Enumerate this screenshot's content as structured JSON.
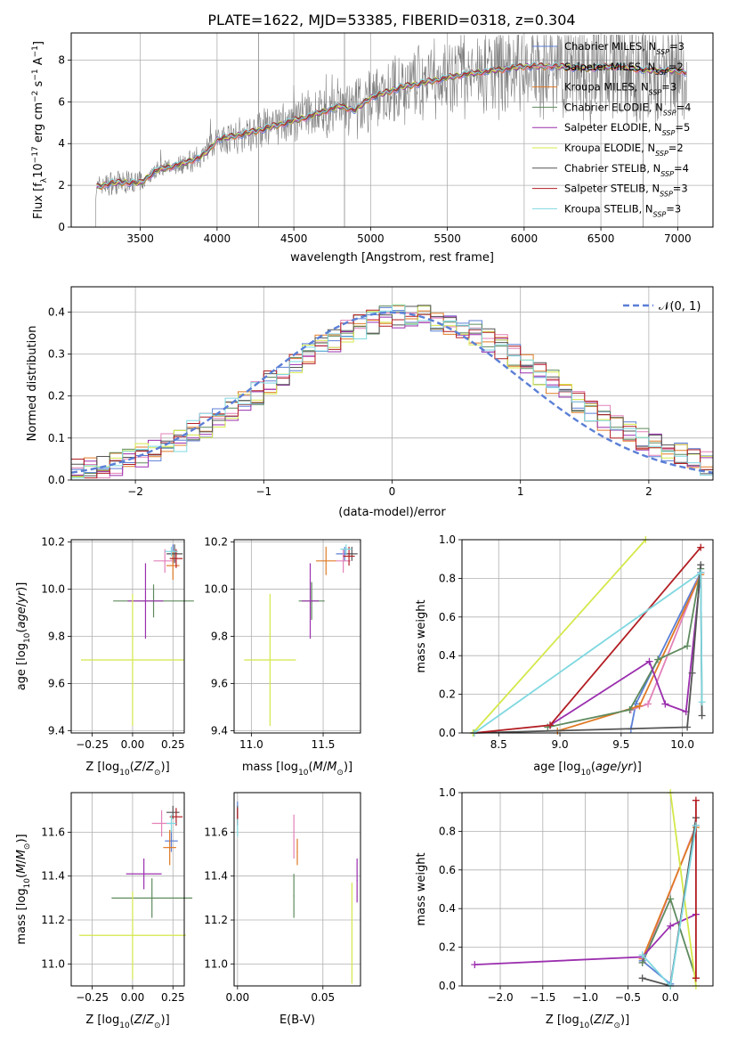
{
  "figure_title": "PLATE=1622, MJD=53385, FIBERID=0318, z=0.304",
  "legend_models": [
    {
      "label": "Chabrier MILES, N",
      "sub": "SSP",
      "tail": "=3",
      "color": "#5b7fd6"
    },
    {
      "label": "Salpeter MILES, N",
      "sub": "SSP",
      "tail": "=2",
      "color": "#e281b8"
    },
    {
      "label": "Kroupa MILES, N",
      "sub": "SSP",
      "tail": "=3",
      "color": "#e07b26"
    },
    {
      "label": "Chabrier ELODIE, N",
      "sub": "SSP",
      "tail": "=4",
      "color": "#5e8a5e"
    },
    {
      "label": "Salpeter ELODIE, N",
      "sub": "SSP",
      "tail": "=5",
      "color": "#9b2fae"
    },
    {
      "label": "Kroupa ELODIE, N",
      "sub": "SSP",
      "tail": "=2",
      "color": "#d4e84a"
    },
    {
      "label": "Chabrier STELIB, N",
      "sub": "SSP",
      "tail": "=4",
      "color": "#555555"
    },
    {
      "label": "Salpeter STELIB, N",
      "sub": "SSP",
      "tail": "=3",
      "color": "#b21e23"
    },
    {
      "label": "Kroupa STELIB, N",
      "sub": "SSP",
      "tail": "=3",
      "color": "#7fd8e0"
    }
  ],
  "chart_data": [
    {
      "type": "line",
      "id": "spectrum",
      "xlabel": "wavelength [Angstrom, rest frame]",
      "ylabel": "Flux [f",
      "ylabel_parts": [
        "Flux [f",
        "λ",
        "10",
        "−17",
        " erg cm",
        "−2",
        " s",
        "−1",
        " A",
        "−1",
        "]"
      ],
      "xlim": [
        3050,
        7230
      ],
      "ylim": [
        0,
        9.3
      ],
      "xticks": [
        3500,
        4000,
        4500,
        5000,
        5500,
        6000,
        6500,
        7000
      ],
      "yticks": [
        0,
        2,
        4,
        6,
        8
      ],
      "continuum": [
        [
          3210,
          1.9
        ],
        [
          3300,
          2.1
        ],
        [
          3400,
          2.15
        ],
        [
          3500,
          2.1
        ],
        [
          3600,
          2.7
        ],
        [
          3700,
          2.9
        ],
        [
          3800,
          3.1
        ],
        [
          3900,
          3.4
        ],
        [
          3950,
          3.7
        ],
        [
          4000,
          4.2
        ],
        [
          4200,
          4.5
        ],
        [
          4400,
          4.9
        ],
        [
          4600,
          5.3
        ],
        [
          4800,
          5.8
        ],
        [
          4900,
          5.6
        ],
        [
          5000,
          6.2
        ],
        [
          5200,
          6.7
        ],
        [
          5400,
          7.0
        ],
        [
          5600,
          7.3
        ],
        [
          5800,
          7.5
        ],
        [
          6000,
          7.7
        ],
        [
          6200,
          7.7
        ],
        [
          6400,
          7.6
        ],
        [
          6600,
          7.7
        ],
        [
          6800,
          7.5
        ],
        [
          7000,
          7.5
        ],
        [
          7060,
          7.4
        ]
      ]
    },
    {
      "type": "area",
      "id": "residual-histograms",
      "xlabel": "(data-model)/error",
      "ylabel": "Normed distribution",
      "xlim": [
        -2.5,
        2.5
      ],
      "ylim": [
        0,
        0.46
      ],
      "xticks": [
        -2,
        -1,
        0,
        1,
        2
      ],
      "yticks": [
        0.0,
        0.1,
        0.2,
        0.3,
        0.4
      ],
      "bin_width": 0.1,
      "reference": {
        "label": "𝒩(0, 1)",
        "mean": 0,
        "sigma": 1,
        "color": "#5b7fd6"
      }
    },
    {
      "type": "scatter",
      "id": "age-vs-metallicity",
      "xlabel": "Z [log10(Z/Z⊙)]",
      "ylabel": "age [log10(age/yr)]",
      "xlim": [
        -0.38,
        0.32
      ],
      "ylim": [
        9.39,
        10.21
      ],
      "xticks": [
        -0.25,
        0.0,
        0.25
      ],
      "yticks": [
        9.4,
        9.6,
        9.8,
        10.0,
        10.2
      ],
      "points": [
        {
          "model": 0,
          "x": 0.25,
          "y": 10.15,
          "xerr": 0.03,
          "yerr": 0.04
        },
        {
          "model": 1,
          "x": 0.2,
          "y": 10.12,
          "xerr": 0.07,
          "yerr": 0.05
        },
        {
          "model": 2,
          "x": 0.25,
          "y": 10.1,
          "xerr": 0.04,
          "yerr": 0.06
        },
        {
          "model": 3,
          "x": 0.13,
          "y": 9.95,
          "xerr": 0.25,
          "yerr": 0.07
        },
        {
          "model": 4,
          "x": 0.08,
          "y": 9.95,
          "xerr": 0.11,
          "yerr": 0.16
        },
        {
          "model": 5,
          "x": 0.0,
          "y": 9.7,
          "xerr": 0.32,
          "yerr": 0.28
        },
        {
          "model": 6,
          "x": 0.26,
          "y": 10.15,
          "xerr": 0.05,
          "yerr": 0.04
        },
        {
          "model": 7,
          "x": 0.27,
          "y": 10.13,
          "xerr": 0.04,
          "yerr": 0.04
        },
        {
          "model": 8,
          "x": 0.24,
          "y": 10.16,
          "xerr": 0.04,
          "yerr": 0.02
        }
      ]
    },
    {
      "type": "scatter",
      "id": "age-vs-mass",
      "xlabel": "mass [log10(M/M⊙)]",
      "ylabel": "",
      "xlim": [
        10.88,
        11.76
      ],
      "ylim": [
        9.39,
        10.21
      ],
      "xticks": [
        11.0,
        11.5
      ],
      "yticks": [
        9.4,
        9.6,
        9.8,
        10.0,
        10.2
      ],
      "points": [
        {
          "model": 0,
          "x": 11.65,
          "y": 10.15,
          "xerr": 0.06,
          "yerr": 0.03
        },
        {
          "model": 1,
          "x": 11.64,
          "y": 10.12,
          "xerr": 0.05,
          "yerr": 0.05
        },
        {
          "model": 2,
          "x": 11.52,
          "y": 10.12,
          "xerr": 0.07,
          "yerr": 0.06
        },
        {
          "model": 3,
          "x": 11.42,
          "y": 9.95,
          "xerr": 0.09,
          "yerr": 0.08
        },
        {
          "model": 4,
          "x": 11.41,
          "y": 9.95,
          "xerr": 0.06,
          "yerr": 0.16
        },
        {
          "model": 5,
          "x": 11.13,
          "y": 9.7,
          "xerr": 0.18,
          "yerr": 0.28
        },
        {
          "model": 6,
          "x": 11.7,
          "y": 10.15,
          "xerr": 0.04,
          "yerr": 0.03
        },
        {
          "model": 7,
          "x": 11.68,
          "y": 10.14,
          "xerr": 0.04,
          "yerr": 0.04
        },
        {
          "model": 8,
          "x": 11.66,
          "y": 10.17,
          "xerr": 0.04,
          "yerr": 0.02
        }
      ]
    },
    {
      "type": "line",
      "id": "mass-weight-vs-age",
      "xlabel": "age [log10(age/yr)]",
      "ylabel": "mass weight",
      "xlim": [
        8.2,
        10.25
      ],
      "ylim": [
        0,
        1.0
      ],
      "xticks": [
        8.5,
        9.0,
        9.5,
        10.0
      ],
      "yticks": [
        0.0,
        0.2,
        0.4,
        0.6,
        0.8,
        1.0
      ],
      "series": [
        {
          "model": 0,
          "x": [
            9.58,
            9.62,
            10.15
          ],
          "y": [
            0.02,
            0.15,
            0.83
          ]
        },
        {
          "model": 1,
          "x": [
            9.58,
            9.72,
            10.15
          ],
          "y": [
            0.12,
            0.15,
            0.83
          ]
        },
        {
          "model": 2,
          "x": [
            8.98,
            9.65,
            10.15
          ],
          "y": [
            0.01,
            0.14,
            0.82
          ]
        },
        {
          "model": 3,
          "x": [
            8.9,
            9.57,
            9.8,
            10.04,
            10.15
          ],
          "y": [
            0.03,
            0.12,
            0.38,
            0.45,
            0.85
          ]
        },
        {
          "model": 4,
          "x": [
            8.92,
            9.73,
            9.86,
            10.03,
            10.15
          ],
          "y": [
            0.04,
            0.37,
            0.15,
            0.11,
            0.83
          ]
        },
        {
          "model": 5,
          "x": [
            8.29,
            9.7
          ],
          "y": [
            0.0,
            1.0
          ]
        },
        {
          "model": 6,
          "x": [
            8.3,
            10.04,
            10.08,
            10.15,
            10.16
          ],
          "y": [
            0.0,
            0.03,
            0.31,
            0.87,
            0.09
          ]
        },
        {
          "model": 7,
          "x": [
            8.3,
            8.92,
            10.15
          ],
          "y": [
            0.0,
            0.04,
            0.96
          ]
        },
        {
          "model": 8,
          "x": [
            8.3,
            10.15,
            10.16
          ],
          "y": [
            0.0,
            0.83,
            0.16
          ]
        }
      ]
    },
    {
      "type": "scatter",
      "id": "mass-vs-metallicity",
      "xlabel": "Z [log10(Z/Z⊙)]",
      "ylabel": "mass [log10(M/M⊙)]",
      "xlim": [
        -0.38,
        0.32
      ],
      "ylim": [
        10.9,
        11.78
      ],
      "xticks": [
        -0.25,
        0.0,
        0.25
      ],
      "yticks": [
        11.0,
        11.2,
        11.4,
        11.6
      ],
      "points": [
        {
          "model": 0,
          "x": 0.24,
          "y": 11.56,
          "xerr": 0.04,
          "yerr": 0.05
        },
        {
          "model": 1,
          "x": 0.18,
          "y": 11.64,
          "xerr": 0.06,
          "yerr": 0.06
        },
        {
          "model": 2,
          "x": 0.23,
          "y": 11.53,
          "xerr": 0.04,
          "yerr": 0.08
        },
        {
          "model": 3,
          "x": 0.12,
          "y": 11.3,
          "xerr": 0.25,
          "yerr": 0.09
        },
        {
          "model": 4,
          "x": 0.07,
          "y": 11.41,
          "xerr": 0.11,
          "yerr": 0.07
        },
        {
          "model": 5,
          "x": 0.0,
          "y": 11.13,
          "xerr": 0.33,
          "yerr": 0.2
        },
        {
          "model": 6,
          "x": 0.25,
          "y": 11.69,
          "xerr": 0.04,
          "yerr": 0.03
        },
        {
          "model": 7,
          "x": 0.27,
          "y": 11.67,
          "xerr": 0.04,
          "yerr": 0.04
        },
        {
          "model": 8,
          "x": 0.24,
          "y": 11.64,
          "xerr": 0.03,
          "yerr": 0.04
        }
      ]
    },
    {
      "type": "scatter",
      "id": "mass-vs-extinction",
      "xlabel": "E(B-V)",
      "ylabel": "",
      "xlim": [
        -0.002,
        0.072
      ],
      "ylim": [
        10.9,
        11.78
      ],
      "xticks": [
        0.0,
        0.05
      ],
      "yticks": [
        11.0,
        11.2,
        11.4,
        11.6
      ],
      "points": [
        {
          "model": 0,
          "x": 0.0,
          "y": 11.7,
          "xerr": 0.0003,
          "yerr": 0.04
        },
        {
          "model": 1,
          "x": 0.033,
          "y": 11.58,
          "xerr": 0.0003,
          "yerr": 0.1
        },
        {
          "model": 2,
          "x": 0.035,
          "y": 11.51,
          "xerr": 0.0003,
          "yerr": 0.06
        },
        {
          "model": 3,
          "x": 0.033,
          "y": 11.31,
          "xerr": 0.0003,
          "yerr": 0.1
        },
        {
          "model": 4,
          "x": 0.07,
          "y": 11.38,
          "xerr": 0.0003,
          "yerr": 0.1
        },
        {
          "model": 5,
          "x": 0.067,
          "y": 11.14,
          "xerr": 0.0003,
          "yerr": 0.23
        },
        {
          "model": 6,
          "x": 0.0,
          "y": 11.68,
          "xerr": 0.0003,
          "yerr": 0.04
        },
        {
          "model": 7,
          "x": 0.0,
          "y": 11.67,
          "xerr": 0.0003,
          "yerr": 0.04
        },
        {
          "model": 8,
          "x": 0.0,
          "y": 11.62,
          "xerr": 0.0003,
          "yerr": 0.04
        }
      ]
    },
    {
      "type": "line",
      "id": "mass-weight-vs-metallicity",
      "xlabel": "Z [log10(Z/Z⊙)]",
      "ylabel": "mass weight",
      "xlim": [
        -2.45,
        0.5
      ],
      "ylim": [
        0,
        1.0
      ],
      "xticks": [
        -2.0,
        -1.5,
        -1.0,
        -0.5,
        0.0
      ],
      "yticks": [
        0.0,
        0.2,
        0.4,
        0.6,
        0.8,
        1.0
      ],
      "series": [
        {
          "model": 0,
          "x": [
            -0.33,
            0.0,
            0.3
          ],
          "y": [
            0.13,
            0.01,
            0.83
          ]
        },
        {
          "model": 1,
          "x": [
            -0.33,
            0.3
          ],
          "y": [
            0.12,
            0.83
          ]
        },
        {
          "model": 2,
          "x": [
            -0.33,
            0.3
          ],
          "y": [
            0.14,
            0.82
          ]
        },
        {
          "model": 3,
          "x": [
            -0.33,
            0.0,
            0.3
          ],
          "y": [
            0.12,
            0.45,
            0.04
          ]
        },
        {
          "model": 4,
          "x": [
            -2.3,
            -0.33,
            0.0,
            0.3
          ],
          "y": [
            0.11,
            0.15,
            0.31,
            0.37
          ]
        },
        {
          "model": 5,
          "x": [
            0.0,
            0.3
          ],
          "y": [
            1.0,
            0.0
          ]
        },
        {
          "model": 6,
          "x": [
            -0.33,
            0.0,
            0.3
          ],
          "y": [
            0.04,
            0.0,
            0.87
          ]
        },
        {
          "model": 7,
          "x": [
            0.3,
            0.3
          ],
          "y": [
            0.04,
            0.96
          ]
        },
        {
          "model": 8,
          "x": [
            -0.33,
            0.0,
            0.3
          ],
          "y": [
            0.16,
            0.0,
            0.83
          ]
        }
      ]
    }
  ]
}
